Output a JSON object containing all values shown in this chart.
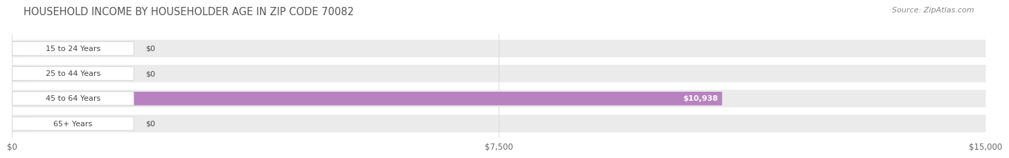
{
  "title": "HOUSEHOLD INCOME BY HOUSEHOLDER AGE IN ZIP CODE 70082",
  "source": "Source: ZipAtlas.com",
  "categories": [
    "15 to 24 Years",
    "25 to 44 Years",
    "45 to 64 Years",
    "65+ Years"
  ],
  "values": [
    0,
    0,
    10938,
    0
  ],
  "bar_colors": [
    "#f0a0aa",
    "#a8c0e8",
    "#b882c0",
    "#78ccd8"
  ],
  "xlim": [
    0,
    15000
  ],
  "xticks": [
    0,
    7500,
    15000
  ],
  "xticklabels": [
    "$0",
    "$7,500",
    "$15,000"
  ],
  "value_labels": [
    "$0",
    "$0",
    "$10,938",
    "$0"
  ],
  "row_bg_color": "#ebebeb",
  "page_bg_color": "#ffffff",
  "title_color": "#555555",
  "source_color": "#888888",
  "title_fontsize": 10.5,
  "source_fontsize": 8,
  "label_box_color": "#ffffff",
  "label_text_color": "#444444",
  "tick_color": "#aaaaaa",
  "grid_color": "#dddddd"
}
